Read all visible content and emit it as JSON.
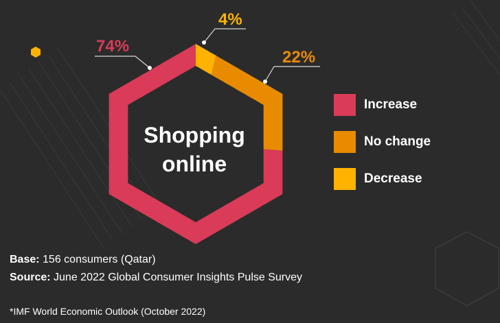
{
  "chart_data": {
    "type": "pie",
    "title": "Shopping online",
    "categories": [
      "Increase",
      "No change",
      "Decrease"
    ],
    "values": [
      74,
      22,
      4
    ],
    "labels": [
      "74%",
      "22%",
      "4%"
    ],
    "colors": [
      "#d93b58",
      "#e88b00",
      "#ffb300"
    ],
    "legend_position": "right"
  },
  "center": {
    "line1": "Shopping",
    "line2": "online"
  },
  "footer": {
    "base_label": "Base:",
    "base_text": "156 consumers (Qatar)",
    "source_label": "Source:",
    "source_text": "June 2022 Global Consumer Insights Pulse Survey",
    "note": "*IMF World Economic Outlook (October 2022)"
  },
  "colors": {
    "background": "#2b2b2b",
    "leader_line": "#d8d8d8",
    "marker_dot": "#ffb300"
  }
}
